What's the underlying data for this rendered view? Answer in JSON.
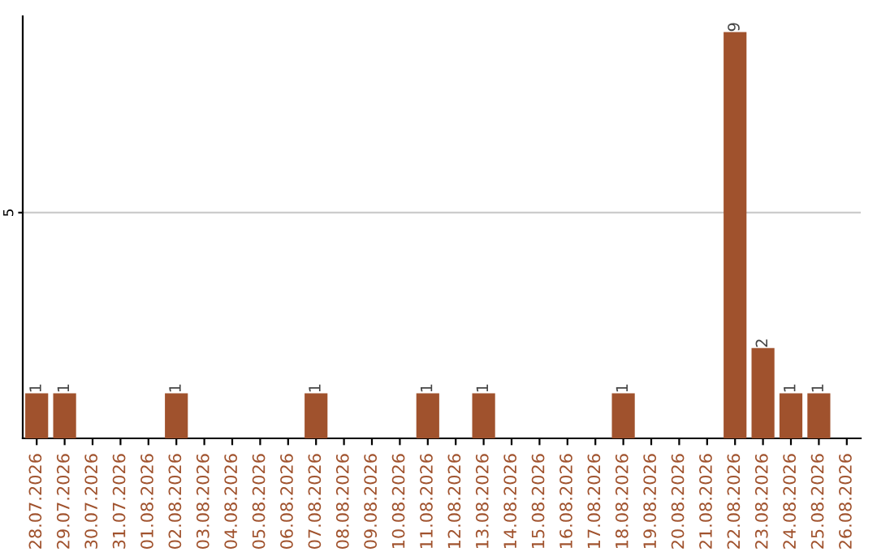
{
  "chart_data": {
    "type": "bar",
    "categories": [
      "28.07.2026",
      "29.07.2026",
      "30.07.2026",
      "31.07.2026",
      "01.08.2026",
      "02.08.2026",
      "03.08.2026",
      "04.08.2026",
      "05.08.2026",
      "06.08.2026",
      "07.08.2026",
      "08.08.2026",
      "09.08.2026",
      "10.08.2026",
      "11.08.2026",
      "12.08.2026",
      "13.08.2026",
      "14.08.2026",
      "15.08.2026",
      "16.08.2026",
      "17.08.2026",
      "18.08.2026",
      "19.08.2026",
      "20.08.2026",
      "21.08.2026",
      "22.08.2026",
      "23.08.2026",
      "24.08.2026",
      "25.08.2026",
      "26.08.2026"
    ],
    "values": [
      1,
      1,
      0,
      0,
      0,
      1,
      0,
      0,
      0,
      0,
      1,
      0,
      0,
      0,
      1,
      0,
      1,
      0,
      0,
      0,
      0,
      1,
      0,
      0,
      0,
      9,
      2,
      1,
      1,
      0
    ],
    "value_labels": [
      "1",
      "1",
      null,
      null,
      null,
      "1",
      null,
      null,
      null,
      null,
      "1",
      null,
      null,
      null,
      "1",
      null,
      "1",
      null,
      null,
      null,
      null,
      "1",
      null,
      null,
      null,
      "9",
      "2",
      "1",
      "1",
      null
    ],
    "color": "#a0522d",
    "ylim": [
      0,
      9.35
    ],
    "yticks": [
      5
    ],
    "grid": "y"
  }
}
